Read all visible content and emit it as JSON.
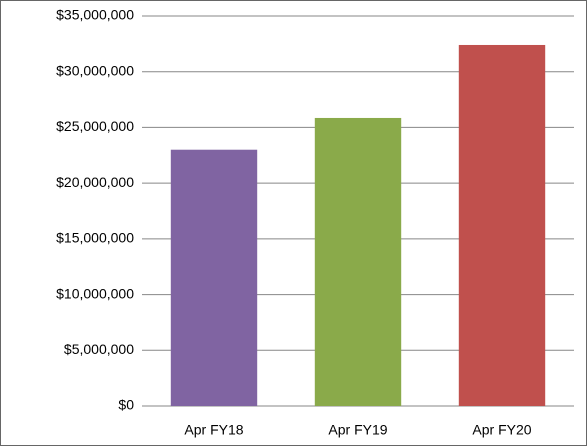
{
  "chart_data": {
    "type": "bar",
    "categories": [
      "Apr FY18",
      "Apr FY19",
      "Apr FY20"
    ],
    "values": [
      23000000,
      25850000,
      32400000
    ],
    "colors": [
      "#8064a2",
      "#8aaa4a",
      "#c0504d"
    ],
    "ylim": [
      0,
      35000000
    ],
    "yticks": [
      {
        "value": 0,
        "label": "$0"
      },
      {
        "value": 5000000,
        "label": "$5,000,000"
      },
      {
        "value": 10000000,
        "label": "$10,000,000"
      },
      {
        "value": 15000000,
        "label": "$15,000,000"
      },
      {
        "value": 20000000,
        "label": "$20,000,000"
      },
      {
        "value": 25000000,
        "label": "$25,000,000"
      },
      {
        "value": 30000000,
        "label": "$30,000,000"
      },
      {
        "value": 35000000,
        "label": "$35,000,000"
      }
    ],
    "grid": true
  }
}
